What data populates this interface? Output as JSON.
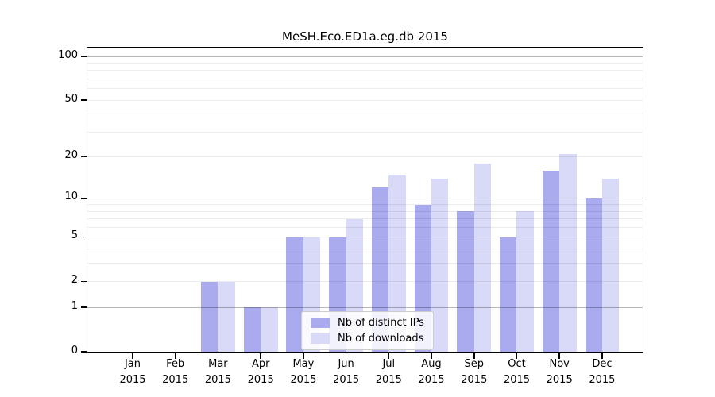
{
  "chart_data": {
    "type": "bar",
    "title": "MeSH.Eco.ED1a.eg.db 2015",
    "categories": [
      "Jan 2015",
      "Feb 2015",
      "Mar 2015",
      "Apr 2015",
      "May 2015",
      "Jun 2015",
      "Jul 2015",
      "Aug 2015",
      "Sep 2015",
      "Oct 2015",
      "Nov 2015",
      "Dec 2015"
    ],
    "x_months": [
      "Jan",
      "Feb",
      "Mar",
      "Apr",
      "May",
      "Jun",
      "Jul",
      "Aug",
      "Sep",
      "Oct",
      "Nov",
      "Dec"
    ],
    "x_year": "2015",
    "series": [
      {
        "name": "Nb of distinct IPs",
        "color": "#aaaaee",
        "values": [
          0,
          0,
          2,
          1,
          5,
          5,
          12,
          9,
          8,
          5,
          16,
          10
        ]
      },
      {
        "name": "Nb of downloads",
        "color": "#d9d9f8",
        "values": [
          0,
          0,
          2,
          1,
          5,
          7,
          15,
          14,
          18,
          8,
          21,
          14
        ]
      }
    ],
    "yscale": "log1p",
    "ylim": [
      0,
      115
    ],
    "ytick_values": [
      0,
      1,
      2,
      5,
      10,
      20,
      50,
      100
    ],
    "ygrid_major_values": [
      1,
      10,
      100
    ],
    "ygrid_minor_values": [
      2,
      3,
      4,
      5,
      6,
      7,
      8,
      9,
      20,
      30,
      40,
      50,
      60,
      70,
      80,
      90
    ],
    "grid": true,
    "legend_position": "lower center-left",
    "xlabel": "",
    "ylabel": ""
  },
  "colors": {
    "bar_distinct_ips": "#aaaaee",
    "bar_downloads": "#d9d9f8",
    "grid_minor": "rgba(0,0,0,0.075)",
    "grid_major": "rgba(0,0,0,0.28)",
    "spine": "#000000",
    "background": "#ffffff"
  }
}
